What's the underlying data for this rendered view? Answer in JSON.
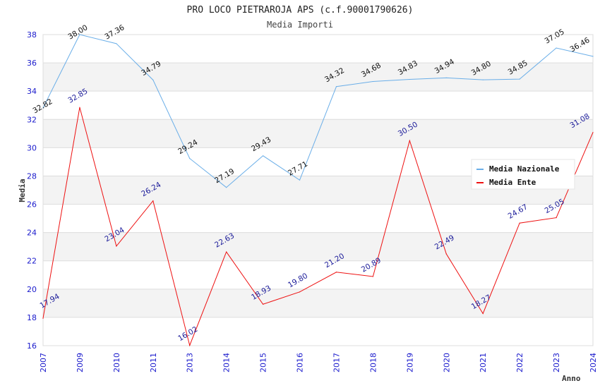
{
  "chart_data": {
    "type": "line",
    "title": "PRO LOCO PIETRAROJA APS (c.f.90001790626)",
    "subtitle": "Media Importi",
    "xlabel": "Anno",
    "ylabel": "Media",
    "ylim": [
      16,
      38
    ],
    "yticks": [
      16,
      18,
      20,
      22,
      24,
      26,
      28,
      30,
      32,
      34,
      36,
      38
    ],
    "grid": true,
    "legend_position": "top-right",
    "categories": [
      "2007",
      "2009",
      "2010",
      "2011",
      "2013",
      "2014",
      "2015",
      "2016",
      "2017",
      "2018",
      "2019",
      "2020",
      "2021",
      "2022",
      "2023",
      "2024"
    ],
    "series": [
      {
        "name": "Media Nazionale",
        "color": "#6aaee8",
        "label_color": "#111111",
        "values": [
          32.82,
          38.0,
          37.36,
          34.79,
          29.24,
          27.19,
          29.43,
          27.71,
          34.32,
          34.68,
          34.83,
          34.94,
          34.8,
          34.85,
          37.05,
          36.46
        ],
        "labels": [
          "32.82",
          "38.00",
          "37.36",
          "34.79",
          "29.24",
          "27.19",
          "29.43",
          "27.71",
          "34.32",
          "34.68",
          "34.83",
          "34.94",
          "34.80",
          "34.85",
          "37.05",
          "36.46"
        ]
      },
      {
        "name": "Media Ente",
        "color": "#ee1111",
        "label_color": "#1a1a99",
        "values": [
          17.94,
          32.85,
          23.04,
          26.24,
          16.02,
          22.63,
          18.93,
          19.8,
          21.2,
          20.89,
          30.5,
          22.49,
          18.27,
          24.67,
          25.05,
          31.08
        ],
        "labels": [
          "17.94",
          "32.85",
          "23.04",
          "26.24",
          "16.02",
          "22.63",
          "18.93",
          "19.80",
          "21.20",
          "20.89",
          "30.50",
          "22.49",
          "18.27",
          "24.67",
          "25.05",
          "31.08"
        ]
      }
    ]
  }
}
